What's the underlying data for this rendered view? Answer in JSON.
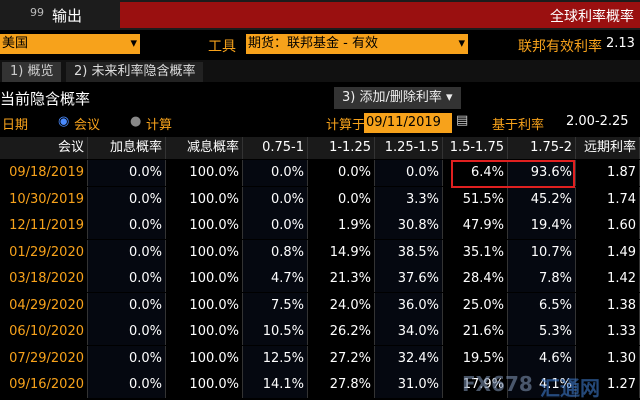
{
  "header": {
    "menu_num": "99",
    "menu": "输出",
    "title": "全球利率概率"
  },
  "toolbar": {
    "country": "美国",
    "instrument_label": "工具",
    "instrument": "期货：联邦基金 - 有效",
    "rate_label": "联邦有效利率",
    "rate": "2.13"
  },
  "tabs": [
    "1) 概览",
    "2) 未来利率隐含概率"
  ],
  "section": {
    "title": "当前隐含概率",
    "button": "3) 添加/删除利率 ▾"
  },
  "options": {
    "date_label": "日期",
    "radio_meeting": "会议",
    "radio_calc": "计算",
    "calc_on_label": "计算于",
    "calc_date": "09/11/2019",
    "base_rate_label": "基于利率",
    "base_rate": "2.00-2.25"
  },
  "table": {
    "columns": [
      "会议",
      "加息概率",
      "减息概率",
      "0.75-1",
      "1-1.25",
      "1.25-1.5",
      "1.5-1.75",
      "1.75-2",
      "远期利率"
    ],
    "rows": [
      [
        "09/18/2019",
        "0.0%",
        "100.0%",
        "0.0%",
        "0.0%",
        "0.0%",
        "6.4%",
        "93.6%",
        "1.87"
      ],
      [
        "10/30/2019",
        "0.0%",
        "100.0%",
        "0.0%",
        "0.0%",
        "3.3%",
        "51.5%",
        "45.2%",
        "1.74"
      ],
      [
        "12/11/2019",
        "0.0%",
        "100.0%",
        "0.0%",
        "1.9%",
        "30.8%",
        "47.9%",
        "19.4%",
        "1.60"
      ],
      [
        "01/29/2020",
        "0.0%",
        "100.0%",
        "0.8%",
        "14.9%",
        "38.5%",
        "35.1%",
        "10.7%",
        "1.49"
      ],
      [
        "03/18/2020",
        "0.0%",
        "100.0%",
        "4.7%",
        "21.3%",
        "37.6%",
        "28.4%",
        "7.8%",
        "1.42"
      ],
      [
        "04/29/2020",
        "0.0%",
        "100.0%",
        "7.5%",
        "24.0%",
        "36.0%",
        "25.0%",
        "6.5%",
        "1.38"
      ],
      [
        "06/10/2020",
        "0.0%",
        "100.0%",
        "10.5%",
        "26.2%",
        "34.0%",
        "21.6%",
        "5.3%",
        "1.33"
      ],
      [
        "07/29/2020",
        "0.0%",
        "100.0%",
        "12.5%",
        "27.2%",
        "32.4%",
        "19.5%",
        "4.6%",
        "1.30"
      ],
      [
        "09/16/2020",
        "0.0%",
        "100.0%",
        "14.1%",
        "27.8%",
        "31.0%",
        "17.9%",
        "4.1%",
        "1.27"
      ]
    ]
  },
  "watermark": {
    "brand": "FX678",
    "name": "汇通网"
  }
}
